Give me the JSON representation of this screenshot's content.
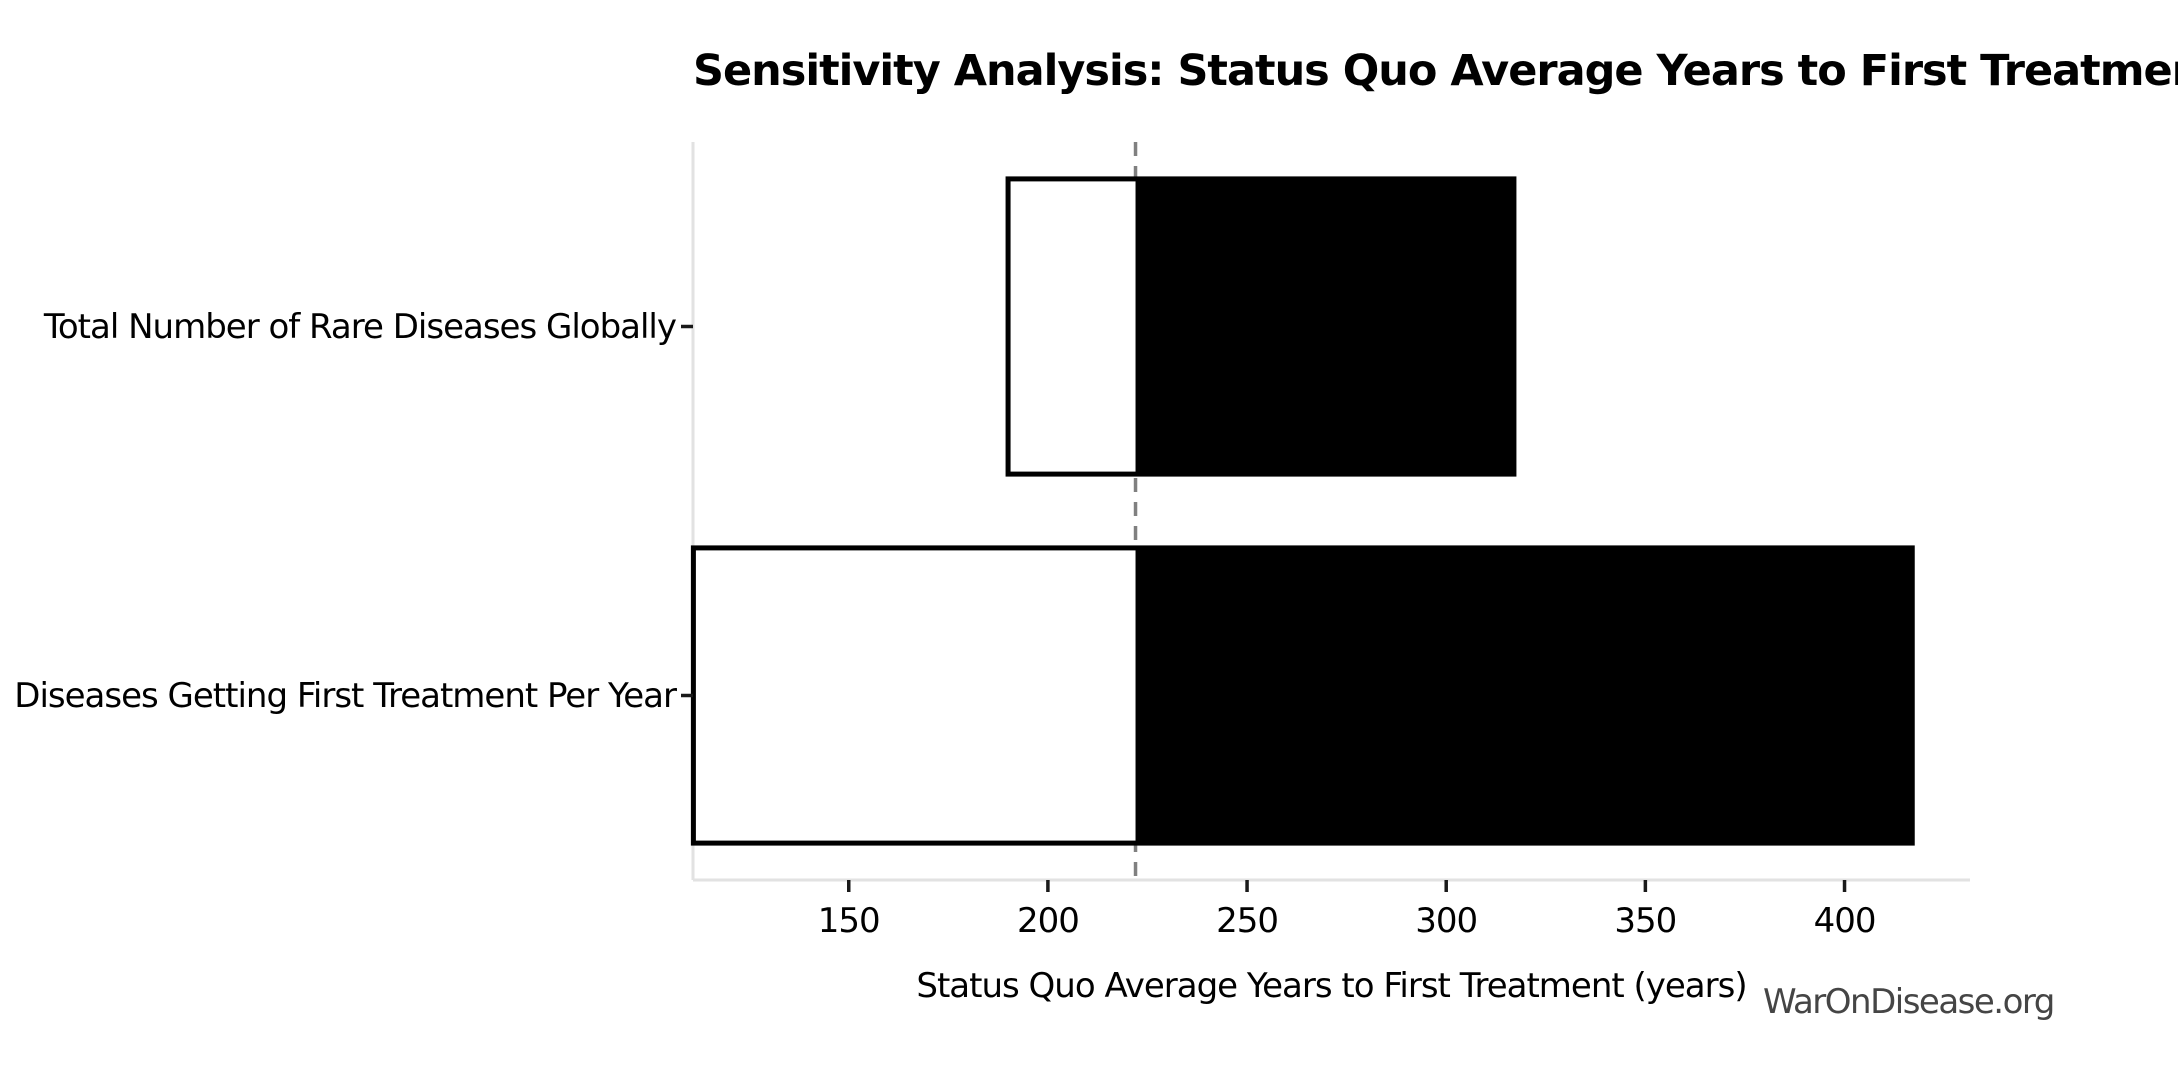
{
  "chart_data": {
    "type": "bar",
    "subtype": "tornado-sensitivity",
    "orientation": "horizontal",
    "title": "Sensitivity Analysis: Status Quo Average Years to First Treatment",
    "xlabel": "Status Quo Average Years to First Treatment (years)",
    "ylabel": "",
    "watermark": "WarOnDisease.org",
    "base_value": 222,
    "xlim": [
      110.9,
      431.5
    ],
    "xticks": [
      150,
      200,
      250,
      300,
      350,
      400
    ],
    "grid": false,
    "legend_position": "none",
    "categories": [
      "Total Number of Rare Diseases Globally",
      "Diseases Getting First Treatment Per Year"
    ],
    "bars": [
      {
        "category": "Total Number of Rare Diseases Globally",
        "low": 190,
        "high": 317
      },
      {
        "category": "Diseases Getting First Treatment Per Year",
        "low": 111,
        "high": 417
      }
    ],
    "colors": {
      "background": "#ffffff",
      "low_fill": "#ffffff",
      "high_fill": "#000000",
      "bar_edge": "#000000",
      "baseline": "#808080",
      "spine": "#e2e2e2",
      "tick_mark": "#1a1a1a",
      "text": "#000000",
      "watermark_text": "#454545"
    }
  }
}
